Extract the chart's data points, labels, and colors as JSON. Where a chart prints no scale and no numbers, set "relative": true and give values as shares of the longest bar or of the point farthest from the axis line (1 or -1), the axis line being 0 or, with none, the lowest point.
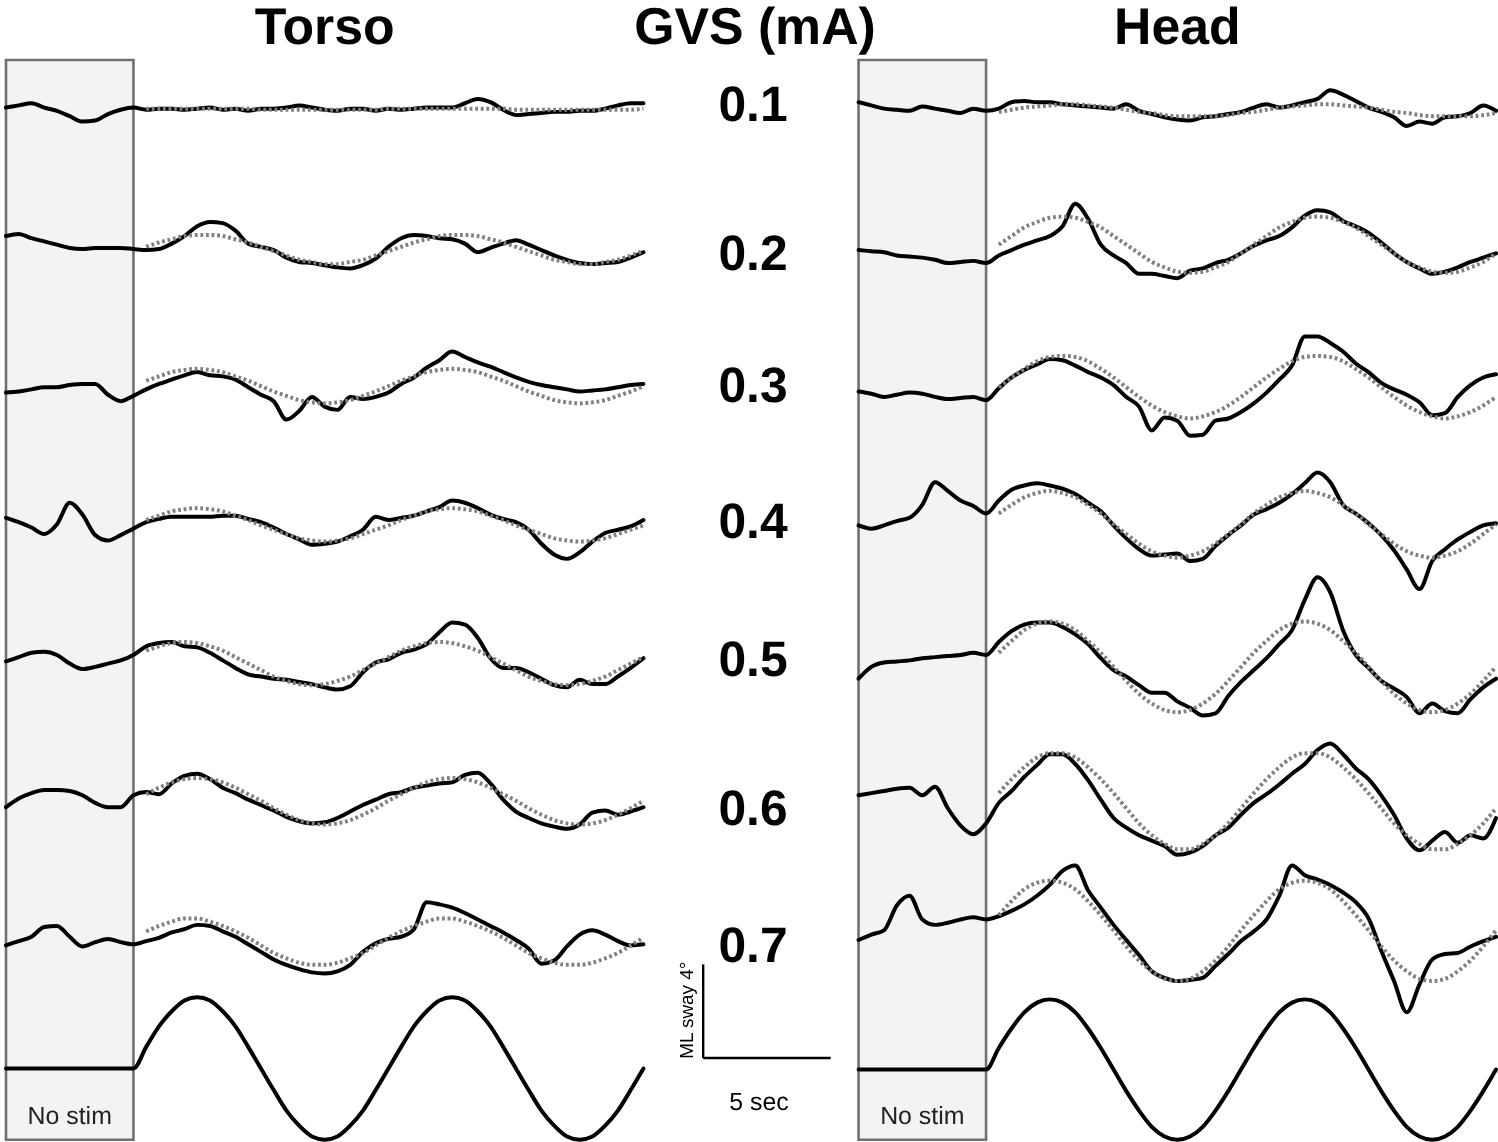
{
  "chart_data": [
    {
      "type": "line",
      "title": "Torso",
      "relative": true,
      "tick_labels": false,
      "categories": [
        null,
        null,
        null,
        null,
        null,
        null,
        null,
        null,
        null,
        null,
        null,
        null,
        null,
        null,
        null,
        null,
        null,
        null,
        null,
        null,
        null,
        null,
        null,
        null,
        null,
        null,
        null,
        null,
        null,
        null,
        null,
        null,
        null,
        null,
        null,
        null,
        null,
        null,
        null,
        null,
        null,
        null,
        null,
        null,
        null,
        null,
        null,
        null,
        null,
        null,
        null
      ],
      "annotations": [
        "GVS (mA)",
        "ML sway 4°",
        "5 sec"
      ],
      "series": [
        {
          "name": "No stim",
          "type": "area",
          "color": "#f3f3f3",
          "values": [
            1,
            1,
            1,
            1,
            1,
            1,
            1,
            1,
            1,
            1,
            1,
            null,
            null,
            null,
            null,
            null,
            null,
            null,
            null,
            null,
            null,
            null,
            null,
            null,
            null,
            null,
            null,
            null,
            null,
            null,
            null,
            null,
            null,
            null,
            null,
            null,
            null,
            null,
            null,
            null,
            null,
            null,
            null,
            null,
            null,
            null,
            null,
            null,
            null,
            null,
            null
          ]
        },
        {
          "name": "0.1",
          "color": "#000000",
          "values": [
            0.956,
            0.958,
            0.96,
            0.956,
            0.953,
            0.948,
            0.943,
            0.944,
            0.95,
            0.954,
            0.956,
            0.954,
            0.955,
            0.955,
            0.954,
            0.955,
            0.956,
            0.954,
            0.955,
            0.953,
            0.955,
            0.955,
            0.956,
            0.958,
            0.956,
            0.954,
            0.953,
            0.955,
            0.955,
            0.953,
            0.955,
            0.954,
            0.955,
            0.956,
            0.956,
            0.956,
            0.96,
            0.964,
            0.961,
            0.954,
            0.949,
            0.95,
            0.951,
            0.952,
            0.952,
            0.953,
            0.953,
            0.955,
            0.958,
            0.96,
            0.96
          ]
        },
        {
          "name": "0.2",
          "color": "#000000",
          "values": [
            0.837,
            0.839,
            0.835,
            0.832,
            0.829,
            0.826,
            0.825,
            0.826,
            0.826,
            0.826,
            0.825,
            0.824,
            0.825,
            0.83,
            0.837,
            0.846,
            0.85,
            0.849,
            0.842,
            0.83,
            0.827,
            0.824,
            0.817,
            0.813,
            0.812,
            0.81,
            0.808,
            0.807,
            0.81,
            0.816,
            0.827,
            0.835,
            0.838,
            0.837,
            0.835,
            0.834,
            0.83,
            0.822,
            0.826,
            0.83,
            0.833,
            0.829,
            0.824,
            0.819,
            0.815,
            0.812,
            0.811,
            0.812,
            0.813,
            0.817,
            0.822
          ]
        },
        {
          "name": "0.3",
          "color": "#000000",
          "values": [
            0.692,
            0.693,
            0.695,
            0.697,
            0.697,
            0.699,
            0.7,
            0.7,
            0.69,
            0.684,
            0.689,
            0.695,
            0.7,
            0.704,
            0.708,
            0.711,
            0.708,
            0.707,
            0.704,
            0.697,
            0.69,
            0.684,
            0.667,
            0.675,
            0.688,
            0.679,
            0.676,
            0.688,
            0.686,
            0.688,
            0.692,
            0.7,
            0.706,
            0.715,
            0.722,
            0.73,
            0.725,
            0.72,
            0.716,
            0.711,
            0.706,
            0.702,
            0.699,
            0.697,
            0.695,
            0.693,
            0.694,
            0.695,
            0.697,
            0.699,
            0.7
          ]
        },
        {
          "name": "0.4",
          "color": "#000000",
          "values": [
            0.576,
            0.572,
            0.567,
            0.561,
            0.57,
            0.59,
            0.579,
            0.56,
            0.555,
            0.56,
            0.566,
            0.572,
            0.575,
            0.577,
            0.577,
            0.577,
            0.577,
            0.578,
            0.578,
            0.575,
            0.572,
            0.567,
            0.561,
            0.556,
            0.551,
            0.552,
            0.554,
            0.559,
            0.565,
            0.577,
            0.574,
            0.576,
            0.578,
            0.582,
            0.586,
            0.592,
            0.59,
            0.585,
            0.579,
            0.575,
            0.572,
            0.565,
            0.552,
            0.542,
            0.538,
            0.544,
            0.554,
            0.562,
            0.565,
            0.568,
            0.574
          ]
        },
        {
          "name": "0.5",
          "color": "#000000",
          "values": [
            0.443,
            0.447,
            0.451,
            0.452,
            0.449,
            0.441,
            0.436,
            0.438,
            0.441,
            0.444,
            0.449,
            0.457,
            0.46,
            0.461,
            0.457,
            0.456,
            0.451,
            0.444,
            0.437,
            0.431,
            0.429,
            0.427,
            0.426,
            0.424,
            0.422,
            0.419,
            0.417,
            0.42,
            0.433,
            0.442,
            0.445,
            0.451,
            0.454,
            0.459,
            0.47,
            0.479,
            0.477,
            0.465,
            0.446,
            0.437,
            0.437,
            0.433,
            0.427,
            0.421,
            0.419,
            0.426,
            0.422,
            0.422,
            0.429,
            0.437,
            0.446
          ]
        },
        {
          "name": "0.6",
          "color": "#000000",
          "values": [
            0.308,
            0.316,
            0.321,
            0.324,
            0.324,
            0.323,
            0.319,
            0.312,
            0.308,
            0.308,
            0.319,
            0.322,
            0.32,
            0.33,
            0.337,
            0.339,
            0.334,
            0.326,
            0.321,
            0.315,
            0.31,
            0.305,
            0.299,
            0.295,
            0.293,
            0.294,
            0.298,
            0.304,
            0.31,
            0.315,
            0.32,
            0.322,
            0.326,
            0.328,
            0.33,
            0.331,
            0.338,
            0.34,
            0.33,
            0.315,
            0.304,
            0.298,
            0.293,
            0.29,
            0.288,
            0.292,
            0.303,
            0.305,
            0.301,
            0.304,
            0.308
          ]
        },
        {
          "name": "0.7",
          "color": "#000000",
          "values": [
            0.18,
            0.184,
            0.188,
            0.197,
            0.198,
            0.188,
            0.179,
            0.183,
            0.186,
            0.183,
            0.181,
            0.184,
            0.187,
            0.192,
            0.195,
            0.199,
            0.198,
            0.193,
            0.188,
            0.181,
            0.174,
            0.167,
            0.162,
            0.158,
            0.155,
            0.154,
            0.156,
            0.162,
            0.174,
            0.182,
            0.186,
            0.188,
            0.195,
            0.22,
            0.218,
            0.215,
            0.21,
            0.204,
            0.198,
            0.192,
            0.185,
            0.177,
            0.163,
            0.166,
            0.179,
            0.19,
            0.194,
            0.19,
            0.184,
            0.18,
            0.181
          ]
        },
        {
          "color": "#7f7f7f",
          "line_style": "dotted",
          "values": [
            null,
            null,
            null,
            null,
            null,
            null,
            null,
            null,
            null,
            null,
            null,
            0.955,
            0.955,
            0.955,
            0.955,
            0.955,
            0.955,
            0.955,
            0.955,
            0.955,
            0.954,
            0.954,
            0.954,
            0.954,
            0.954,
            0.954,
            0.954,
            0.954,
            0.954,
            0.954,
            0.955,
            0.955,
            0.955,
            0.955,
            0.955,
            0.955,
            0.955,
            0.955,
            0.955,
            0.955,
            0.954,
            0.954,
            0.954,
            0.954,
            0.954,
            0.954,
            0.954,
            0.954,
            0.954,
            0.954,
            0.955
          ]
        },
        {
          "color": "#7f7f7f",
          "line_style": "dotted",
          "values": [
            null,
            null,
            null,
            null,
            null,
            null,
            null,
            null,
            null,
            null,
            null,
            0.827,
            0.831,
            0.834,
            0.837,
            0.838,
            0.838,
            0.837,
            0.834,
            0.831,
            0.827,
            0.823,
            0.819,
            0.815,
            0.813,
            0.811,
            0.811,
            0.813,
            0.815,
            0.819,
            0.823,
            0.827,
            0.831,
            0.834,
            0.837,
            0.838,
            0.838,
            0.837,
            0.834,
            0.831,
            0.827,
            0.823,
            0.819,
            0.815,
            0.813,
            0.811,
            0.811,
            0.813,
            0.815,
            0.819,
            0.823
          ]
        },
        {
          "color": "#7f7f7f",
          "line_style": "dotted",
          "values": [
            null,
            null,
            null,
            null,
            null,
            null,
            null,
            null,
            null,
            null,
            null,
            0.703,
            0.707,
            0.711,
            0.713,
            0.714,
            0.713,
            0.711,
            0.707,
            0.703,
            0.698,
            0.693,
            0.689,
            0.685,
            0.683,
            0.682,
            0.683,
            0.685,
            0.689,
            0.693,
            0.698,
            0.703,
            0.707,
            0.711,
            0.713,
            0.714,
            0.713,
            0.711,
            0.707,
            0.703,
            0.698,
            0.693,
            0.689,
            0.685,
            0.683,
            0.682,
            0.683,
            0.685,
            0.689,
            0.693,
            0.698
          ]
        },
        {
          "color": "#7f7f7f",
          "line_style": "dotted",
          "values": [
            null,
            null,
            null,
            null,
            null,
            null,
            null,
            null,
            null,
            null,
            null,
            0.574,
            0.578,
            0.582,
            0.584,
            0.585,
            0.584,
            0.582,
            0.578,
            0.574,
            0.569,
            0.565,
            0.561,
            0.557,
            0.555,
            0.554,
            0.555,
            0.557,
            0.561,
            0.565,
            0.569,
            0.574,
            0.578,
            0.582,
            0.584,
            0.585,
            0.584,
            0.582,
            0.578,
            0.574,
            0.569,
            0.565,
            0.561,
            0.557,
            0.555,
            0.554,
            0.555,
            0.557,
            0.561,
            0.565,
            0.569
          ]
        },
        {
          "color": "#7f7f7f",
          "line_style": "dotted",
          "values": [
            null,
            null,
            null,
            null,
            null,
            null,
            null,
            null,
            null,
            null,
            null,
            0.453,
            0.457,
            0.46,
            0.461,
            0.46,
            0.457,
            0.453,
            0.447,
            0.441,
            0.435,
            0.429,
            0.425,
            0.422,
            0.421,
            0.422,
            0.425,
            0.429,
            0.435,
            0.441,
            0.447,
            0.453,
            0.457,
            0.46,
            0.461,
            0.46,
            0.457,
            0.453,
            0.447,
            0.441,
            0.435,
            0.429,
            0.425,
            0.422,
            0.421,
            0.422,
            0.425,
            0.429,
            0.435,
            0.441,
            0.447
          ]
        },
        {
          "color": "#7f7f7f",
          "line_style": "dotted",
          "values": [
            null,
            null,
            null,
            null,
            null,
            null,
            null,
            null,
            null,
            null,
            null,
            0.32,
            0.326,
            0.331,
            0.334,
            0.335,
            0.334,
            0.331,
            0.326,
            0.32,
            0.314,
            0.307,
            0.301,
            0.296,
            0.293,
            0.292,
            0.293,
            0.296,
            0.301,
            0.307,
            0.314,
            0.32,
            0.326,
            0.331,
            0.334,
            0.335,
            0.334,
            0.331,
            0.326,
            0.32,
            0.314,
            0.307,
            0.301,
            0.296,
            0.293,
            0.292,
            0.293,
            0.296,
            0.301,
            0.307,
            0.314
          ]
        },
        {
          "color": "#7f7f7f",
          "line_style": "dotted",
          "values": [
            null,
            null,
            null,
            null,
            null,
            null,
            null,
            null,
            null,
            null,
            null,
            0.193,
            0.198,
            0.202,
            0.205,
            0.205,
            0.202,
            0.198,
            0.193,
            0.187,
            0.18,
            0.173,
            0.168,
            0.164,
            0.162,
            0.162,
            0.164,
            0.168,
            0.173,
            0.18,
            0.187,
            0.193,
            0.198,
            0.202,
            0.205,
            0.205,
            0.202,
            0.198,
            0.193,
            0.187,
            0.18,
            0.173,
            0.168,
            0.164,
            0.162,
            0.162,
            0.164,
            0.168,
            0.173,
            0.18,
            0.187
          ]
        },
        {
          "color": "#000000",
          "values": [
            0.066,
            0.066,
            0.066,
            0.066,
            0.066,
            0.066,
            0.066,
            0.066,
            0.066,
            0.066,
            0.066,
            0.086,
            0.105,
            0.119,
            0.129,
            0.132,
            0.129,
            0.119,
            0.105,
            0.086,
            0.066,
            0.046,
            0.027,
            0.013,
            0.003,
            0,
            0.003,
            0.013,
            0.027,
            0.046,
            0.066,
            0.086,
            0.105,
            0.119,
            0.129,
            0.132,
            0.129,
            0.119,
            0.105,
            0.086,
            0.066,
            0.046,
            0.027,
            0.013,
            0.003,
            0,
            0.003,
            0.013,
            0.027,
            0.046,
            0.066
          ]
        }
      ]
    },
    {
      "type": "line",
      "title": "Head",
      "relative": true,
      "tick_labels": false,
      "categories": [
        null,
        null,
        null,
        null,
        null,
        null,
        null,
        null,
        null,
        null,
        null,
        null,
        null,
        null,
        null,
        null,
        null,
        null,
        null,
        null,
        null,
        null,
        null,
        null,
        null,
        null,
        null,
        null,
        null,
        null,
        null,
        null,
        null,
        null,
        null,
        null,
        null,
        null,
        null,
        null,
        null,
        null,
        null,
        null,
        null,
        null,
        null,
        null,
        null,
        null,
        null
      ],
      "series": [
        {
          "name": "No stim",
          "type": "area",
          "color": "#f3f3f3",
          "values": [
            1,
            1,
            1,
            1,
            1,
            1,
            1,
            1,
            1,
            1,
            1,
            null,
            null,
            null,
            null,
            null,
            null,
            null,
            null,
            null,
            null,
            null,
            null,
            null,
            null,
            null,
            null,
            null,
            null,
            null,
            null,
            null,
            null,
            null,
            null,
            null,
            null,
            null,
            null,
            null,
            null,
            null,
            null,
            null,
            null,
            null,
            null,
            null,
            null,
            null,
            null
          ]
        },
        {
          "color": "#000000",
          "values": [
            0.961,
            0.958,
            0.955,
            0.954,
            0.953,
            0.957,
            0.955,
            0.953,
            0.951,
            0.955,
            0.953,
            0.955,
            0.961,
            0.962,
            0.961,
            0.961,
            0.959,
            0.958,
            0.957,
            0.956,
            0.955,
            0.959,
            0.953,
            0.95,
            0.947,
            0.945,
            0.944,
            0.947,
            0.948,
            0.95,
            0.952,
            0.956,
            0.959,
            0.956,
            0.958,
            0.961,
            0.964,
            0.972,
            0.968,
            0.962,
            0.956,
            0.952,
            0.947,
            0.939,
            0.943,
            0.941,
            0.947,
            0.948,
            0.951,
            0.958,
            0.953
          ]
        },
        {
          "color": "#000000",
          "values": [
            0.824,
            0.823,
            0.822,
            0.819,
            0.818,
            0.817,
            0.815,
            0.812,
            0.813,
            0.814,
            0.812,
            0.819,
            0.824,
            0.829,
            0.833,
            0.837,
            0.846,
            0.867,
            0.853,
            0.829,
            0.819,
            0.812,
            0.802,
            0.802,
            0.8,
            0.798,
            0.805,
            0.807,
            0.812,
            0.815,
            0.821,
            0.828,
            0.833,
            0.837,
            0.845,
            0.856,
            0.861,
            0.859,
            0.851,
            0.846,
            0.84,
            0.831,
            0.821,
            0.813,
            0.807,
            0.802,
            0.804,
            0.808,
            0.813,
            0.817,
            0.821
          ]
        },
        {
          "color": "#000000",
          "values": [
            0.693,
            0.691,
            0.688,
            0.69,
            0.692,
            0.691,
            0.688,
            0.686,
            0.687,
            0.688,
            0.685,
            0.696,
            0.706,
            0.713,
            0.718,
            0.723,
            0.722,
            0.717,
            0.711,
            0.706,
            0.699,
            0.688,
            0.679,
            0.657,
            0.669,
            0.666,
            0.652,
            0.653,
            0.666,
            0.668,
            0.674,
            0.682,
            0.692,
            0.704,
            0.717,
            0.744,
            0.744,
            0.738,
            0.73,
            0.719,
            0.711,
            0.701,
            0.695,
            0.69,
            0.683,
            0.671,
            0.673,
            0.688,
            0.699,
            0.706,
            0.709
          ]
        },
        {
          "color": "#000000",
          "values": [
            0.569,
            0.566,
            0.569,
            0.573,
            0.576,
            0.588,
            0.609,
            0.601,
            0.592,
            0.587,
            0.58,
            0.592,
            0.602,
            0.606,
            0.608,
            0.606,
            0.603,
            0.598,
            0.59,
            0.582,
            0.569,
            0.557,
            0.547,
            0.541,
            0.542,
            0.543,
            0.536,
            0.538,
            0.55,
            0.56,
            0.569,
            0.579,
            0.584,
            0.59,
            0.598,
            0.608,
            0.618,
            0.609,
            0.588,
            0.58,
            0.571,
            0.56,
            0.546,
            0.528,
            0.51,
            0.536,
            0.547,
            0.556,
            0.563,
            0.569,
            0.571
          ]
        },
        {
          "color": "#000000",
          "values": [
            0.427,
            0.438,
            0.442,
            0.443,
            0.444,
            0.446,
            0.447,
            0.448,
            0.449,
            0.451,
            0.449,
            0.461,
            0.471,
            0.477,
            0.479,
            0.479,
            0.475,
            0.468,
            0.459,
            0.446,
            0.435,
            0.429,
            0.421,
            0.414,
            0.414,
            0.406,
            0.4,
            0.393,
            0.395,
            0.411,
            0.424,
            0.435,
            0.446,
            0.459,
            0.472,
            0.5,
            0.521,
            0.507,
            0.472,
            0.449,
            0.437,
            0.425,
            0.418,
            0.41,
            0.395,
            0.404,
            0.397,
            0.395,
            0.408,
            0.419,
            0.427
          ]
        },
        {
          "color": "#000000",
          "values": [
            0.319,
            0.321,
            0.323,
            0.325,
            0.326,
            0.319,
            0.327,
            0.307,
            0.291,
            0.283,
            0.293,
            0.312,
            0.323,
            0.336,
            0.347,
            0.357,
            0.357,
            0.348,
            0.333,
            0.315,
            0.298,
            0.289,
            0.282,
            0.277,
            0.272,
            0.264,
            0.266,
            0.272,
            0.282,
            0.289,
            0.301,
            0.312,
            0.32,
            0.329,
            0.339,
            0.348,
            0.361,
            0.367,
            0.357,
            0.344,
            0.334,
            0.319,
            0.301,
            0.279,
            0.268,
            0.277,
            0.285,
            0.275,
            0.282,
            0.279,
            0.298
          ]
        },
        {
          "color": "#000000",
          "values": [
            0.185,
            0.19,
            0.194,
            0.217,
            0.226,
            0.204,
            0.199,
            0.201,
            0.204,
            0.206,
            0.204,
            0.207,
            0.212,
            0.218,
            0.226,
            0.236,
            0.249,
            0.254,
            0.231,
            0.215,
            0.199,
            0.185,
            0.171,
            0.156,
            0.15,
            0.147,
            0.148,
            0.15,
            0.161,
            0.172,
            0.184,
            0.193,
            0.204,
            0.226,
            0.254,
            0.245,
            0.241,
            0.236,
            0.229,
            0.22,
            0.205,
            0.175,
            0.147,
            0.118,
            0.144,
            0.167,
            0.172,
            0.173,
            0.179,
            0.184,
            0.188
          ]
        },
        {
          "color": "#7f7f7f",
          "line_style": "dotted",
          "values": [
            null,
            null,
            null,
            null,
            null,
            null,
            null,
            null,
            null,
            null,
            null,
            0.952,
            0.954,
            0.956,
            0.957,
            0.958,
            0.959,
            0.959,
            0.958,
            0.957,
            0.956,
            0.954,
            0.952,
            0.951,
            0.949,
            0.948,
            0.948,
            0.948,
            0.948,
            0.949,
            0.951,
            0.952,
            0.954,
            0.956,
            0.957,
            0.958,
            0.959,
            0.959,
            0.958,
            0.957,
            0.956,
            0.954,
            0.952,
            0.951,
            0.949,
            0.948,
            0.948,
            0.948,
            0.948,
            0.949,
            0.951
          ]
        },
        {
          "color": "#7f7f7f",
          "line_style": "dotted",
          "values": [
            null,
            null,
            null,
            null,
            null,
            null,
            null,
            null,
            null,
            null,
            null,
            0.829,
            0.837,
            0.845,
            0.85,
            0.854,
            0.855,
            0.854,
            0.85,
            0.845,
            0.837,
            0.829,
            0.821,
            0.813,
            0.808,
            0.804,
            0.803,
            0.804,
            0.808,
            0.813,
            0.821,
            0.829,
            0.837,
            0.845,
            0.85,
            0.854,
            0.855,
            0.854,
            0.85,
            0.845,
            0.837,
            0.829,
            0.821,
            0.813,
            0.808,
            0.804,
            0.803,
            0.804,
            0.808,
            0.813,
            0.821
          ]
        },
        {
          "color": "#7f7f7f",
          "line_style": "dotted",
          "values": [
            null,
            null,
            null,
            null,
            null,
            null,
            null,
            null,
            null,
            null,
            null,
            0.697,
            0.706,
            0.714,
            0.721,
            0.725,
            0.726,
            0.725,
            0.721,
            0.714,
            0.706,
            0.697,
            0.688,
            0.68,
            0.674,
            0.67,
            0.668,
            0.67,
            0.674,
            0.68,
            0.688,
            0.697,
            0.706,
            0.714,
            0.721,
            0.725,
            0.726,
            0.725,
            0.721,
            0.714,
            0.706,
            0.697,
            0.688,
            0.68,
            0.674,
            0.67,
            0.668,
            0.67,
            0.674,
            0.68,
            0.688
          ]
        },
        {
          "color": "#7f7f7f",
          "line_style": "dotted",
          "values": [
            null,
            null,
            null,
            null,
            null,
            null,
            null,
            null,
            null,
            null,
            null,
            0.58,
            0.588,
            0.595,
            0.599,
            0.601,
            0.599,
            0.595,
            0.588,
            0.58,
            0.57,
            0.561,
            0.552,
            0.545,
            0.541,
            0.539,
            0.541,
            0.545,
            0.552,
            0.561,
            0.57,
            0.58,
            0.588,
            0.595,
            0.599,
            0.601,
            0.599,
            0.595,
            0.588,
            0.58,
            0.57,
            0.561,
            0.552,
            0.545,
            0.541,
            0.539,
            0.541,
            0.545,
            0.552,
            0.561,
            0.57
          ]
        },
        {
          "color": "#7f7f7f",
          "line_style": "dotted",
          "values": [
            null,
            null,
            null,
            null,
            null,
            null,
            null,
            null,
            null,
            null,
            null,
            0.451,
            0.462,
            0.472,
            0.478,
            0.48,
            0.478,
            0.472,
            0.462,
            0.451,
            0.438,
            0.425,
            0.413,
            0.404,
            0.398,
            0.396,
            0.398,
            0.404,
            0.413,
            0.425,
            0.438,
            0.451,
            0.462,
            0.472,
            0.478,
            0.48,
            0.478,
            0.472,
            0.462,
            0.451,
            0.438,
            0.425,
            0.413,
            0.404,
            0.398,
            0.396,
            0.398,
            0.404,
            0.413,
            0.425,
            0.438
          ]
        },
        {
          "color": "#7f7f7f",
          "line_style": "dotted",
          "values": [
            null,
            null,
            null,
            null,
            null,
            null,
            null,
            null,
            null,
            null,
            null,
            0.321,
            0.334,
            0.345,
            0.354,
            0.358,
            0.358,
            0.354,
            0.345,
            0.334,
            0.321,
            0.307,
            0.293,
            0.282,
            0.274,
            0.269,
            0.269,
            0.274,
            0.282,
            0.293,
            0.307,
            0.321,
            0.334,
            0.345,
            0.354,
            0.358,
            0.358,
            0.354,
            0.345,
            0.334,
            0.321,
            0.307,
            0.293,
            0.282,
            0.274,
            0.269,
            0.269,
            0.274,
            0.282,
            0.293,
            0.307
          ]
        },
        {
          "color": "#7f7f7f",
          "line_style": "dotted",
          "values": [
            null,
            null,
            null,
            null,
            null,
            null,
            null,
            null,
            null,
            null,
            null,
            0.208,
            0.221,
            0.232,
            0.238,
            0.24,
            0.238,
            0.232,
            0.221,
            0.208,
            0.194,
            0.179,
            0.166,
            0.156,
            0.149,
            0.147,
            0.149,
            0.156,
            0.166,
            0.179,
            0.194,
            0.208,
            0.221,
            0.232,
            0.238,
            0.24,
            0.238,
            0.232,
            0.221,
            0.208,
            0.194,
            0.179,
            0.166,
            0.156,
            0.149,
            0.147,
            0.149,
            0.156,
            0.166,
            0.179,
            0.194
          ]
        },
        {
          "color": "#000000",
          "values": [
            0.065,
            0.065,
            0.065,
            0.065,
            0.065,
            0.065,
            0.065,
            0.065,
            0.065,
            0.065,
            0.065,
            0.085,
            0.103,
            0.118,
            0.127,
            0.13,
            0.127,
            0.118,
            0.103,
            0.085,
            0.065,
            0.045,
            0.027,
            0.012,
            0.003,
            0,
            0.003,
            0.012,
            0.027,
            0.045,
            0.065,
            0.085,
            0.103,
            0.118,
            0.127,
            0.13,
            0.127,
            0.118,
            0.103,
            0.085,
            0.065,
            0.045,
            0.027,
            0.012,
            0.003,
            0,
            0.003,
            0.012,
            0.027,
            0.045,
            0.065
          ]
        }
      ]
    }
  ]
}
